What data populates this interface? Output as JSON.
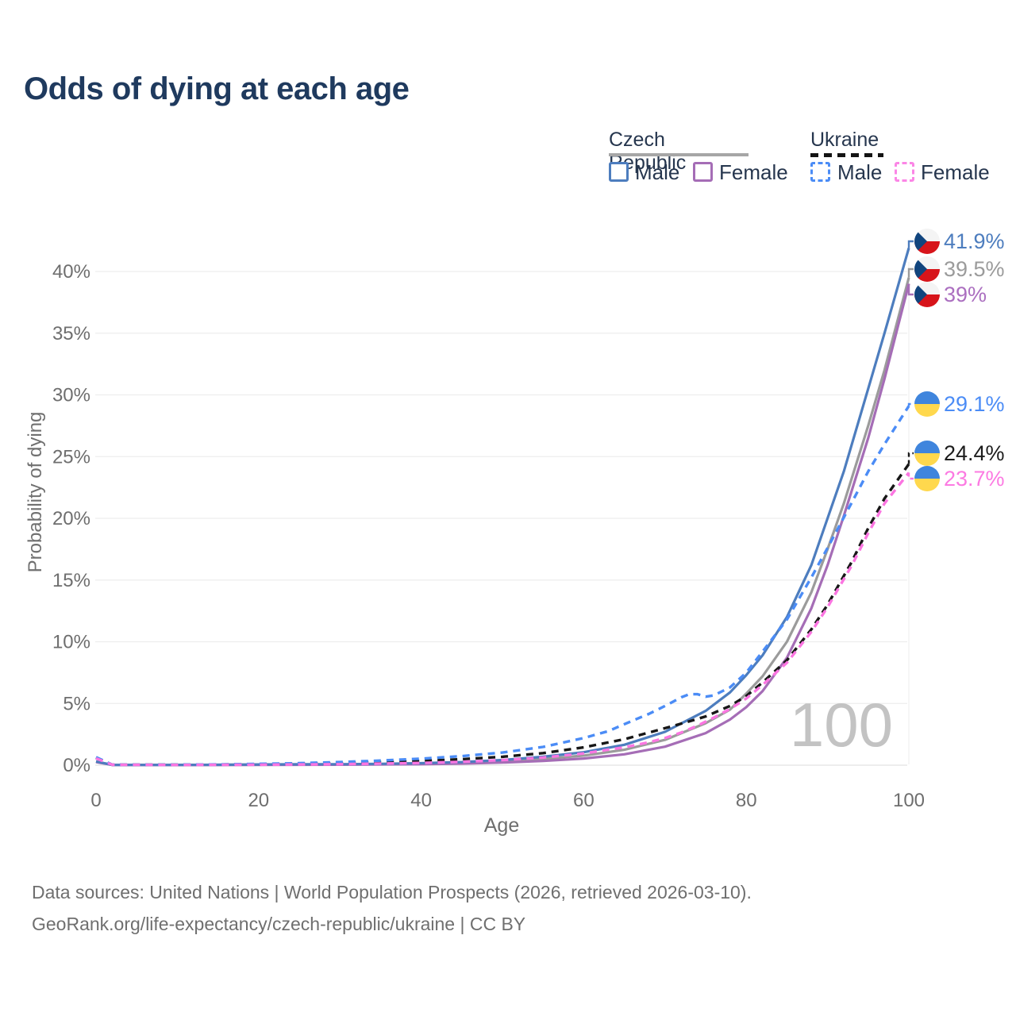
{
  "header": {
    "title": "Odds of dying at each age"
  },
  "legend": {
    "groups": [
      {
        "label": "Czech Republic",
        "line_style": "solid",
        "underline_color": "#a6a6a6",
        "items": [
          {
            "label": "Male",
            "color": "#4d7dbe"
          },
          {
            "label": "Female",
            "color": "#a56db6"
          }
        ]
      },
      {
        "label": "Ukraine",
        "line_style": "dashed",
        "underline_color": "#141414",
        "items": [
          {
            "label": "Male",
            "color": "#4b8cf6"
          },
          {
            "label": "Female",
            "color": "#fb86e6"
          }
        ]
      }
    ]
  },
  "watermark": "100",
  "footer": {
    "line1": "Data sources: United Nations | World Population Prospects (2026, retrieved 2026-03-10).",
    "line2": "GeoRank.org/life-expectancy/czech-republic/ukraine | CC BY"
  },
  "chart_data": {
    "type": "line",
    "title": "Odds of dying at each age",
    "xlabel": "Age",
    "ylabel": "Probability of dying",
    "xlim": [
      0,
      100
    ],
    "ylim": [
      0,
      43
    ],
    "xticks": [
      0,
      20,
      40,
      60,
      80,
      100
    ],
    "xtick_labels": [
      "0",
      "20",
      "40",
      "60",
      "80",
      "100"
    ],
    "yticks": [
      0,
      5,
      10,
      15,
      20,
      25,
      30,
      35,
      40
    ],
    "ytick_labels": [
      "0%",
      "5%",
      "10%",
      "15%",
      "20%",
      "25%",
      "30%",
      "35%",
      "40%"
    ],
    "grid": "horizontal",
    "legend_position": "top-right",
    "flags": {
      "cz": {
        "white": "#f4f4f4",
        "red": "#d7141a",
        "blue": "#11457e"
      },
      "ua": {
        "blue": "#3f85dd",
        "yellow": "#ffd84d"
      }
    },
    "series": [
      {
        "id": "cz-male",
        "name": "Czech Republic Male",
        "country": "Czech Republic",
        "sex": "Male",
        "color": "#4d7dbe",
        "dash": "solid",
        "flag": "cz",
        "end_value": 41.9,
        "end_label": "41.9%",
        "end_label_color": "#4d7dbe",
        "points": [
          [
            0,
            0.3
          ],
          [
            2,
            0.02
          ],
          [
            10,
            0.02
          ],
          [
            15,
            0.03
          ],
          [
            20,
            0.06
          ],
          [
            25,
            0.07
          ],
          [
            30,
            0.08
          ],
          [
            35,
            0.11
          ],
          [
            40,
            0.16
          ],
          [
            45,
            0.25
          ],
          [
            50,
            0.42
          ],
          [
            55,
            0.68
          ],
          [
            60,
            1.05
          ],
          [
            65,
            1.65
          ],
          [
            70,
            2.7
          ],
          [
            75,
            4.4
          ],
          [
            78,
            5.9
          ],
          [
            80,
            7.3
          ],
          [
            82,
            8.9
          ],
          [
            85,
            12.0
          ],
          [
            88,
            16.2
          ],
          [
            90,
            20.0
          ],
          [
            92,
            23.8
          ],
          [
            95,
            30.5
          ],
          [
            97,
            35.0
          ],
          [
            100,
            41.9
          ]
        ]
      },
      {
        "id": "cz-overall",
        "name": "Czech Republic Both sexes",
        "country": "Czech Republic",
        "sex": "Both",
        "color": "#9b9b9b",
        "dash": "solid",
        "flag": "cz",
        "end_value": 39.5,
        "end_label": "39.5%",
        "end_label_color": "#9b9b9b",
        "points": [
          [
            0,
            0.28
          ],
          [
            2,
            0.02
          ],
          [
            10,
            0.02
          ],
          [
            20,
            0.04
          ],
          [
            30,
            0.06
          ],
          [
            40,
            0.12
          ],
          [
            45,
            0.19
          ],
          [
            50,
            0.31
          ],
          [
            55,
            0.5
          ],
          [
            60,
            0.78
          ],
          [
            65,
            1.25
          ],
          [
            70,
            2.05
          ],
          [
            75,
            3.4
          ],
          [
            78,
            4.5
          ],
          [
            80,
            5.8
          ],
          [
            82,
            7.2
          ],
          [
            85,
            10.0
          ],
          [
            88,
            14.0
          ],
          [
            90,
            17.5
          ],
          [
            92,
            21.2
          ],
          [
            95,
            27.5
          ],
          [
            97,
            32.0
          ],
          [
            100,
            39.5
          ]
        ]
      },
      {
        "id": "cz-female",
        "name": "Czech Republic Female",
        "country": "Czech Republic",
        "sex": "Female",
        "color": "#a56db6",
        "dash": "solid",
        "flag": "cz",
        "end_value": 39.0,
        "end_label": "39%",
        "end_label_color": "#ab6fc0",
        "points": [
          [
            0,
            0.25
          ],
          [
            2,
            0.02
          ],
          [
            10,
            0.01
          ],
          [
            20,
            0.02
          ],
          [
            30,
            0.04
          ],
          [
            40,
            0.08
          ],
          [
            45,
            0.13
          ],
          [
            50,
            0.21
          ],
          [
            55,
            0.34
          ],
          [
            60,
            0.54
          ],
          [
            65,
            0.88
          ],
          [
            70,
            1.5
          ],
          [
            75,
            2.6
          ],
          [
            78,
            3.7
          ],
          [
            80,
            4.7
          ],
          [
            82,
            6.0
          ],
          [
            85,
            8.7
          ],
          [
            88,
            12.7
          ],
          [
            90,
            16.2
          ],
          [
            92,
            20.2
          ],
          [
            95,
            26.5
          ],
          [
            97,
            31.3
          ],
          [
            100,
            39.0
          ]
        ]
      },
      {
        "id": "ua-male",
        "name": "Ukraine Male",
        "country": "Ukraine",
        "sex": "Male",
        "color": "#4b8cf6",
        "dash": "dashed",
        "flag": "ua",
        "end_value": 29.1,
        "end_label": "29.1%",
        "end_label_color": "#4b8cf6",
        "points": [
          [
            0,
            0.65
          ],
          [
            2,
            0.04
          ],
          [
            10,
            0.04
          ],
          [
            15,
            0.06
          ],
          [
            20,
            0.1
          ],
          [
            25,
            0.16
          ],
          [
            30,
            0.25
          ],
          [
            35,
            0.37
          ],
          [
            40,
            0.53
          ],
          [
            45,
            0.73
          ],
          [
            50,
            1.02
          ],
          [
            55,
            1.48
          ],
          [
            60,
            2.2
          ],
          [
            63,
            2.75
          ],
          [
            66,
            3.6
          ],
          [
            68,
            4.15
          ],
          [
            70,
            4.8
          ],
          [
            72,
            5.5
          ],
          [
            73,
            5.75
          ],
          [
            74,
            5.75
          ],
          [
            75,
            5.55
          ],
          [
            76,
            5.65
          ],
          [
            78,
            6.3
          ],
          [
            80,
            7.5
          ],
          [
            82,
            9.2
          ],
          [
            85,
            11.8
          ],
          [
            88,
            15.2
          ],
          [
            90,
            17.6
          ],
          [
            93,
            21.3
          ],
          [
            95,
            23.8
          ],
          [
            97,
            26.0
          ],
          [
            100,
            29.1
          ]
        ]
      },
      {
        "id": "ua-overall",
        "name": "Ukraine Both sexes",
        "country": "Ukraine",
        "sex": "Both",
        "color": "#171717",
        "dash": "dashed",
        "flag": "ua",
        "end_value": 24.4,
        "end_label": "24.4%",
        "end_label_color": "#1c1c1c",
        "points": [
          [
            0,
            0.6
          ],
          [
            2,
            0.04
          ],
          [
            10,
            0.03
          ],
          [
            20,
            0.07
          ],
          [
            30,
            0.16
          ],
          [
            40,
            0.34
          ],
          [
            45,
            0.48
          ],
          [
            50,
            0.68
          ],
          [
            55,
            0.98
          ],
          [
            60,
            1.45
          ],
          [
            65,
            2.1
          ],
          [
            70,
            3.0
          ],
          [
            73,
            3.55
          ],
          [
            75,
            3.95
          ],
          [
            78,
            4.8
          ],
          [
            80,
            5.6
          ],
          [
            82,
            6.7
          ],
          [
            85,
            8.5
          ],
          [
            88,
            11.0
          ],
          [
            90,
            13.0
          ],
          [
            93,
            16.5
          ],
          [
            95,
            19.2
          ],
          [
            97,
            21.6
          ],
          [
            100,
            24.4
          ]
        ]
      },
      {
        "id": "ua-female",
        "name": "Ukraine Female",
        "country": "Ukraine",
        "sex": "Female",
        "color": "#fb75e1",
        "dash": "dashed",
        "flag": "ua",
        "end_value": 23.7,
        "end_label": "23.7%",
        "end_label_color": "#fc7ae2",
        "points": [
          [
            0,
            0.55
          ],
          [
            2,
            0.03
          ],
          [
            10,
            0.02
          ],
          [
            20,
            0.04
          ],
          [
            30,
            0.08
          ],
          [
            40,
            0.18
          ],
          [
            45,
            0.27
          ],
          [
            50,
            0.41
          ],
          [
            55,
            0.62
          ],
          [
            60,
            0.95
          ],
          [
            65,
            1.45
          ],
          [
            68,
            1.85
          ],
          [
            70,
            2.2
          ],
          [
            72,
            2.65
          ],
          [
            74,
            3.2
          ],
          [
            76,
            3.85
          ],
          [
            78,
            4.55
          ],
          [
            80,
            5.4
          ],
          [
            82,
            6.5
          ],
          [
            85,
            8.3
          ],
          [
            88,
            10.8
          ],
          [
            90,
            12.8
          ],
          [
            93,
            16.2
          ],
          [
            95,
            18.8
          ],
          [
            97,
            21.2
          ],
          [
            100,
            23.7
          ]
        ]
      }
    ]
  }
}
